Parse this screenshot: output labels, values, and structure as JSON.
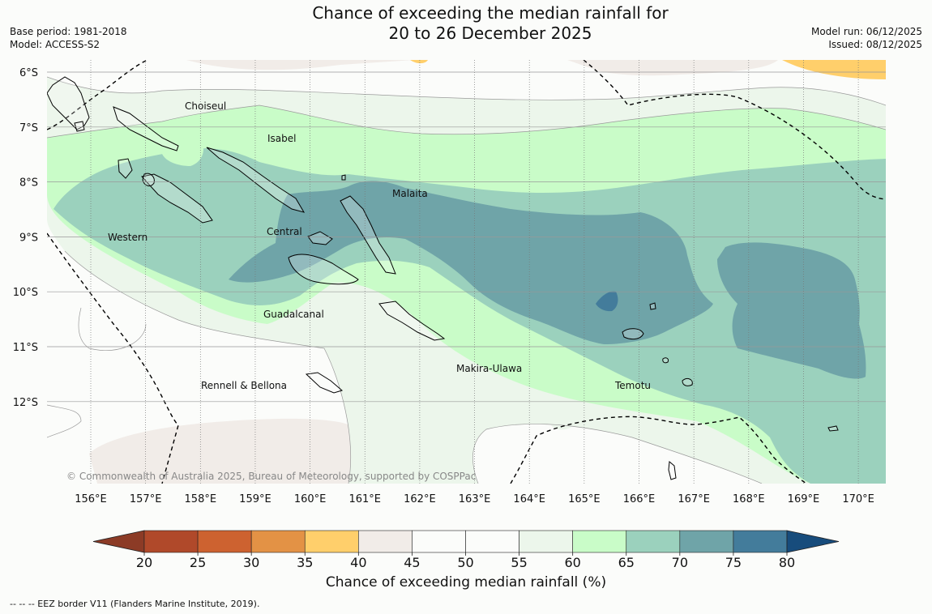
{
  "header": {
    "title_line1": "Chance of exceeding the median rainfall for",
    "title_line2": "20 to 26 December 2025",
    "base_period": "Base period: 1981-2018",
    "model": "Model: ACCESS-S2",
    "model_run": "Model run: 06/12/2025",
    "issued": "Issued: 08/12/2025"
  },
  "map": {
    "lat_labels": [
      "6°S",
      "7°S",
      "8°S",
      "9°S",
      "10°S",
      "11°S",
      "12°S"
    ],
    "lon_labels": [
      "156°E",
      "157°E",
      "158°E",
      "159°E",
      "160°E",
      "161°E",
      "162°E",
      "163°E",
      "164°E",
      "165°E",
      "166°E",
      "167°E",
      "168°E",
      "169°E",
      "170°E"
    ],
    "regions": [
      "Choiseul",
      "Isabel",
      "Malaita",
      "Western",
      "Central",
      "Guadalcanal",
      "Makira-Ulawa",
      "Rennell & Bellona",
      "Temotu"
    ],
    "copyright": "© Commonwealth of Australia 2025, Bureau of Meteorology, supported by COSPPac"
  },
  "colorbar": {
    "ticks": [
      "20",
      "25",
      "30",
      "35",
      "40",
      "45",
      "50",
      "55",
      "60",
      "65",
      "70",
      "75",
      "80"
    ],
    "colors": [
      "#8c3b26",
      "#b0492a",
      "#cd6230",
      "#e39245",
      "#ffcf6b",
      "#f1ece8",
      "#fbfcfa",
      "#fbfcfa",
      "#ecf6eb",
      "#c9fcc8",
      "#9bd1bd",
      "#6fa4a8",
      "#437c9b",
      "#174c7c"
    ],
    "label": "Chance of exceeding median rainfall (%)"
  },
  "footer": {
    "legend": "--  --  -- EEZ border V11 (Flanders Marine Institute, 2019)."
  }
}
